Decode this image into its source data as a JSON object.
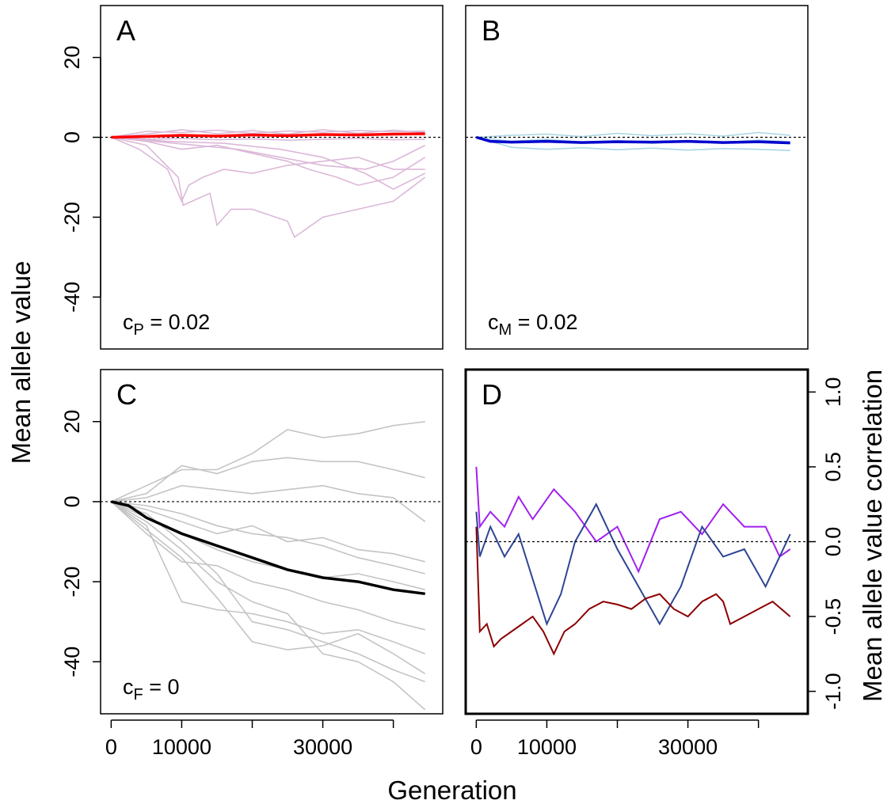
{
  "figure": {
    "xlabel": "Generation",
    "ylabel_left": "Mean allele value",
    "ylabel_right": "Mean allele value correlation"
  },
  "chart_data": [
    {
      "panel": "A",
      "type": "line",
      "annotation": {
        "symbol": "c",
        "sub": "P",
        "rest": " = 0.02"
      },
      "xlim": [
        -1500,
        47000
      ],
      "ylim": [
        -53,
        33
      ],
      "yticks": [
        20,
        0,
        -20,
        -40
      ],
      "ytick_labels": [
        "20",
        "0",
        "-20",
        "-40"
      ],
      "reference_line": 0,
      "colors": {
        "replicates": "#dbb8d8",
        "mean": "#ff0000"
      },
      "replicates": [
        {
          "x": [
            0,
            5000,
            10000,
            15000,
            20000,
            25000,
            30000,
            35000,
            40000,
            44500
          ],
          "y": [
            0,
            1.5,
            1.2,
            1.8,
            1.0,
            1.6,
            1.3,
            1.7,
            1.4,
            1.6
          ]
        },
        {
          "x": [
            0,
            5000,
            10000,
            15000,
            20000,
            25000,
            30000,
            35000,
            40000,
            44500
          ],
          "y": [
            0,
            0.8,
            1.9,
            0.9,
            1.7,
            0.8,
            1.9,
            1.0,
            1.8,
            1.2
          ]
        },
        {
          "x": [
            0,
            5000,
            10000,
            15000,
            20000,
            25000,
            30000,
            35000,
            40000,
            44500
          ],
          "y": [
            0,
            -0.5,
            -0.3,
            -0.6,
            -0.4,
            -0.7,
            -0.5,
            -0.3,
            -0.6,
            -0.5
          ]
        },
        {
          "x": [
            0,
            5000,
            9500,
            10200,
            14000,
            15000,
            17000,
            20000,
            25000,
            26000,
            30000,
            35000,
            40000,
            44500
          ],
          "y": [
            0,
            -2,
            -10,
            -17,
            -14,
            -22,
            -18,
            -18,
            -21,
            -25,
            -20,
            -18,
            -16,
            -10
          ]
        },
        {
          "x": [
            0,
            4000,
            8000,
            10000,
            11000,
            13000,
            16000,
            20000,
            25000,
            30000,
            35000,
            40000,
            44500
          ],
          "y": [
            0,
            -3,
            -8,
            -16,
            -12,
            -10,
            -8,
            -9,
            -7,
            -6,
            -5,
            -8,
            -8
          ]
        },
        {
          "x": [
            0,
            5000,
            10000,
            15000,
            20000,
            25000,
            28000,
            32000,
            35000,
            40000,
            44500
          ],
          "y": [
            0,
            -1,
            -3,
            -2,
            -4,
            -6,
            -8,
            -10,
            -12,
            -10,
            -5
          ]
        },
        {
          "x": [
            0,
            6000,
            12000,
            18000,
            24000,
            30000,
            36000,
            40000,
            44500
          ],
          "y": [
            0,
            -1,
            -2,
            -3,
            -5,
            -7,
            -8,
            -6,
            -2
          ]
        },
        {
          "x": [
            0,
            8000,
            16000,
            24000,
            30000,
            36000,
            40000,
            44500
          ],
          "y": [
            0,
            -1,
            -1.5,
            -3,
            -5,
            -9,
            -13,
            -9
          ]
        }
      ],
      "mean": {
        "x": [
          0,
          5000,
          10000,
          15000,
          20000,
          25000,
          30000,
          35000,
          40000,
          44500
        ],
        "y": [
          0,
          0.2,
          0.5,
          0.3,
          0.6,
          0.4,
          0.7,
          0.6,
          0.8,
          0.9
        ]
      }
    },
    {
      "panel": "B",
      "type": "line",
      "annotation": {
        "symbol": "c",
        "sub": "M",
        "rest": " = 0.02"
      },
      "xlim": [
        -1500,
        47000
      ],
      "ylim": [
        -53,
        33
      ],
      "reference_line": 0,
      "colors": {
        "replicates": "#a9d6e5",
        "mean": "#0000cd"
      },
      "replicates": [
        {
          "x": [
            0,
            5000,
            10000,
            15000,
            20000,
            25000,
            30000,
            35000,
            40000,
            44500
          ],
          "y": [
            0,
            0.5,
            0.8,
            0.2,
            1.0,
            0.4,
            0.9,
            0.3,
            1.2,
            0.5
          ]
        },
        {
          "x": [
            0,
            5000,
            10000,
            15000,
            20000,
            25000,
            30000,
            35000,
            40000,
            44500
          ],
          "y": [
            0,
            -2.5,
            -3,
            -2.6,
            -3.1,
            -2.7,
            -3.2,
            -2.8,
            -3,
            -3.3
          ]
        },
        {
          "x": [
            0,
            5000,
            10000,
            15000,
            20000,
            25000,
            30000,
            35000,
            40000,
            44500
          ],
          "y": [
            0,
            -1,
            -0.5,
            -1.2,
            -0.8,
            -1.5,
            -0.9,
            -1.3,
            -0.7,
            -1.1
          ]
        }
      ],
      "mean": {
        "x": [
          0,
          2000,
          5000,
          10000,
          15000,
          20000,
          25000,
          30000,
          35000,
          40000,
          44500
        ],
        "y": [
          0,
          -1,
          -1.2,
          -1.0,
          -1.3,
          -1.1,
          -1.2,
          -1.0,
          -1.3,
          -1.1,
          -1.4
        ]
      }
    },
    {
      "panel": "C",
      "type": "line",
      "annotation": {
        "symbol": "c",
        "sub": "F",
        "rest": " = 0"
      },
      "xlim": [
        -1500,
        47000
      ],
      "ylim": [
        -53,
        33
      ],
      "yticks": [
        20,
        0,
        -20,
        -40
      ],
      "ytick_labels": [
        "20",
        "0",
        "-20",
        "-40"
      ],
      "xticks": [
        0,
        10000,
        20000,
        30000,
        40000
      ],
      "xtick_labels": [
        "0",
        "10000",
        "",
        "30000",
        ""
      ],
      "reference_line": 0,
      "colors": {
        "replicates": "#c4c4c4",
        "mean": "#000000"
      },
      "replicates": [
        {
          "x": [
            0,
            5000,
            10000,
            15000,
            20000,
            25000,
            30000,
            35000,
            40000,
            44500
          ],
          "y": [
            0,
            4,
            8,
            8,
            12,
            18,
            16,
            17,
            19,
            20
          ]
        },
        {
          "x": [
            0,
            5000,
            10000,
            15000,
            20000,
            25000,
            30000,
            35000,
            40000,
            44500
          ],
          "y": [
            0,
            2,
            9,
            7,
            10,
            11,
            10,
            10,
            8,
            6
          ]
        },
        {
          "x": [
            0,
            5000,
            10000,
            15000,
            20000,
            25000,
            30000,
            35000,
            40000,
            44500
          ],
          "y": [
            0,
            1,
            4,
            3,
            2,
            3,
            4,
            2,
            1,
            -5
          ]
        },
        {
          "x": [
            0,
            5000,
            10000,
            15000,
            20000,
            25000,
            30000,
            35000,
            40000,
            44500
          ],
          "y": [
            0,
            -2,
            -5,
            -8,
            -6,
            -10,
            -9,
            -12,
            -13,
            -15
          ]
        },
        {
          "x": [
            0,
            5000,
            10000,
            15000,
            20000,
            25000,
            30000,
            35000,
            40000,
            44500
          ],
          "y": [
            0,
            -4,
            -8,
            -12,
            -15,
            -17,
            -19,
            -18,
            -20,
            -22
          ]
        },
        {
          "x": [
            0,
            5000,
            10000,
            15000,
            20000,
            25000,
            30000,
            35000,
            40000,
            44500
          ],
          "y": [
            0,
            -8,
            -15,
            -16,
            -20,
            -22,
            -25,
            -27,
            -30,
            -32
          ]
        },
        {
          "x": [
            0,
            5000,
            10000,
            15000,
            20000,
            25000,
            30000,
            35000,
            40000,
            44500
          ],
          "y": [
            0,
            -6,
            -25,
            -27,
            -28,
            -30,
            -33,
            -32,
            -35,
            -38
          ]
        },
        {
          "x": [
            0,
            5000,
            10000,
            15000,
            20000,
            25000,
            30000,
            35000,
            40000,
            44500
          ],
          "y": [
            0,
            -3,
            -10,
            -18,
            -30,
            -32,
            -35,
            -38,
            -42,
            -45
          ]
        },
        {
          "x": [
            0,
            5000,
            10000,
            15000,
            20000,
            25000,
            30000,
            35000,
            40000,
            44500
          ],
          "y": [
            0,
            -5,
            -12,
            -20,
            -25,
            -28,
            -38,
            -40,
            -45,
            -52
          ]
        },
        {
          "x": [
            0,
            5000,
            10000,
            15000,
            20000,
            25000,
            30000,
            35000,
            40000,
            44500
          ],
          "y": [
            0,
            -7,
            -14,
            -24,
            -35,
            -37,
            -36,
            -33,
            -38,
            -43
          ]
        },
        {
          "x": [
            0,
            5000,
            10000,
            15000,
            20000,
            25000,
            30000,
            35000,
            40000,
            44500
          ],
          "y": [
            0,
            -1,
            -3,
            -6,
            -8,
            -9,
            -11,
            -14,
            -16,
            -18
          ]
        }
      ],
      "mean": {
        "x": [
          0,
          2500,
          5000,
          10000,
          15000,
          20000,
          25000,
          30000,
          35000,
          40000,
          44500
        ],
        "y": [
          0,
          -1,
          -4,
          -8,
          -11,
          -14,
          -17,
          -19,
          -20,
          -22,
          -23
        ]
      }
    },
    {
      "panel": "D",
      "type": "line",
      "xlim": [
        -1500,
        47000
      ],
      "ylim": [
        -1.15,
        1.15
      ],
      "yticks": [
        1.0,
        0.5,
        0.0,
        -0.5,
        -1.0
      ],
      "ytick_labels": [
        "1.0",
        "0.5",
        "0.0",
        "-0.5",
        "-1.0"
      ],
      "xticks": [
        0,
        10000,
        20000,
        30000,
        40000
      ],
      "xtick_labels": [
        "0",
        "10000",
        "",
        "30000",
        ""
      ],
      "reference_line": 0,
      "series": [
        {
          "color": "#a020f0",
          "x": [
            0,
            500,
            2000,
            4000,
            6000,
            8000,
            11000,
            14000,
            17000,
            20000,
            23000,
            26000,
            29000,
            32000,
            35000,
            38000,
            41000,
            43000,
            44500
          ],
          "y": [
            0.5,
            0.1,
            0.2,
            0.1,
            0.3,
            0.15,
            0.35,
            0.2,
            0.0,
            0.1,
            -0.2,
            0.15,
            0.2,
            0.05,
            0.25,
            0.1,
            0.1,
            -0.1,
            -0.05
          ]
        },
        {
          "color": "#2e4593",
          "x": [
            0,
            500,
            2000,
            4000,
            6000,
            8000,
            10000,
            12000,
            14000,
            17000,
            20000,
            23000,
            26000,
            29000,
            32000,
            35000,
            38000,
            41000,
            43000,
            44500
          ],
          "y": [
            0.2,
            -0.1,
            0.1,
            -0.1,
            0.05,
            -0.25,
            -0.55,
            -0.35,
            0.0,
            0.25,
            -0.05,
            -0.3,
            -0.55,
            -0.3,
            0.1,
            -0.1,
            -0.05,
            -0.3,
            -0.1,
            0.05
          ]
        },
        {
          "color": "#8b0000",
          "x": [
            0,
            500,
            1500,
            2500,
            3500,
            5000,
            6500,
            8000,
            9500,
            11000,
            12500,
            14000,
            16000,
            18000,
            20000,
            22000,
            24000,
            26000,
            28000,
            30000,
            32000,
            34000,
            35000,
            36000,
            38000,
            40000,
            42000,
            44500
          ],
          "y": [
            0.1,
            -0.6,
            -0.55,
            -0.7,
            -0.65,
            -0.6,
            -0.55,
            -0.5,
            -0.6,
            -0.75,
            -0.6,
            -0.55,
            -0.45,
            -0.4,
            -0.42,
            -0.45,
            -0.38,
            -0.35,
            -0.45,
            -0.5,
            -0.4,
            -0.35,
            -0.4,
            -0.55,
            -0.5,
            -0.45,
            -0.4,
            -0.5
          ]
        }
      ]
    }
  ]
}
